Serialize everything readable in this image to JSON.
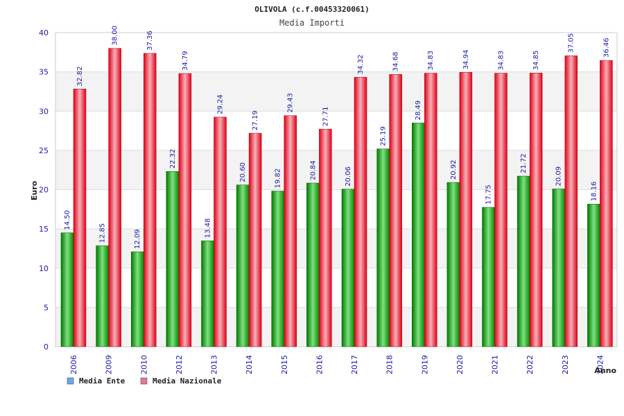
{
  "chart_data": {
    "type": "bar",
    "title": "OLIVOLA (c.f.00453320061)",
    "subtitle": "Media Importi",
    "xlabel": "Anno",
    "ylabel": "Euro",
    "ylim": [
      0,
      40
    ],
    "yticks": [
      0,
      5,
      10,
      15,
      20,
      25,
      30,
      35,
      40
    ],
    "grid": true,
    "legend_position": "bottom-left",
    "categories": [
      "2006",
      "2009",
      "2010",
      "2012",
      "2013",
      "2014",
      "2015",
      "2016",
      "2017",
      "2018",
      "2019",
      "2020",
      "2021",
      "2022",
      "2023",
      "2024"
    ],
    "series": [
      {
        "name": "Media Ente",
        "color": "#00a000",
        "legend_color": "#6aa9e8",
        "values": [
          14.5,
          12.85,
          12.09,
          22.32,
          13.48,
          20.6,
          19.82,
          20.84,
          20.06,
          25.19,
          28.49,
          20.92,
          17.75,
          21.72,
          20.09,
          18.16
        ],
        "labels": [
          "14.50",
          "12.85",
          "12.09",
          "22.32",
          "13.48",
          "20.60",
          "19.82",
          "20.84",
          "20.06",
          "25.19",
          "28.49",
          "20.92",
          "17.75",
          "21.72",
          "20.09",
          "18.16"
        ]
      },
      {
        "name": "Media Nazionale",
        "color": "#e01020",
        "legend_color": "#e07a9a",
        "values": [
          32.82,
          38.0,
          37.36,
          34.79,
          29.24,
          27.19,
          29.43,
          27.71,
          34.32,
          34.68,
          34.83,
          34.94,
          34.83,
          34.85,
          37.05,
          36.46
        ],
        "labels": [
          "32.82",
          "38.00",
          "37.36",
          "34.79",
          "29.24",
          "27.19",
          "29.43",
          "27.71",
          "34.32",
          "34.68",
          "34.83",
          "34.94",
          "34.83",
          "34.85",
          "37.05",
          "36.46"
        ]
      }
    ]
  }
}
